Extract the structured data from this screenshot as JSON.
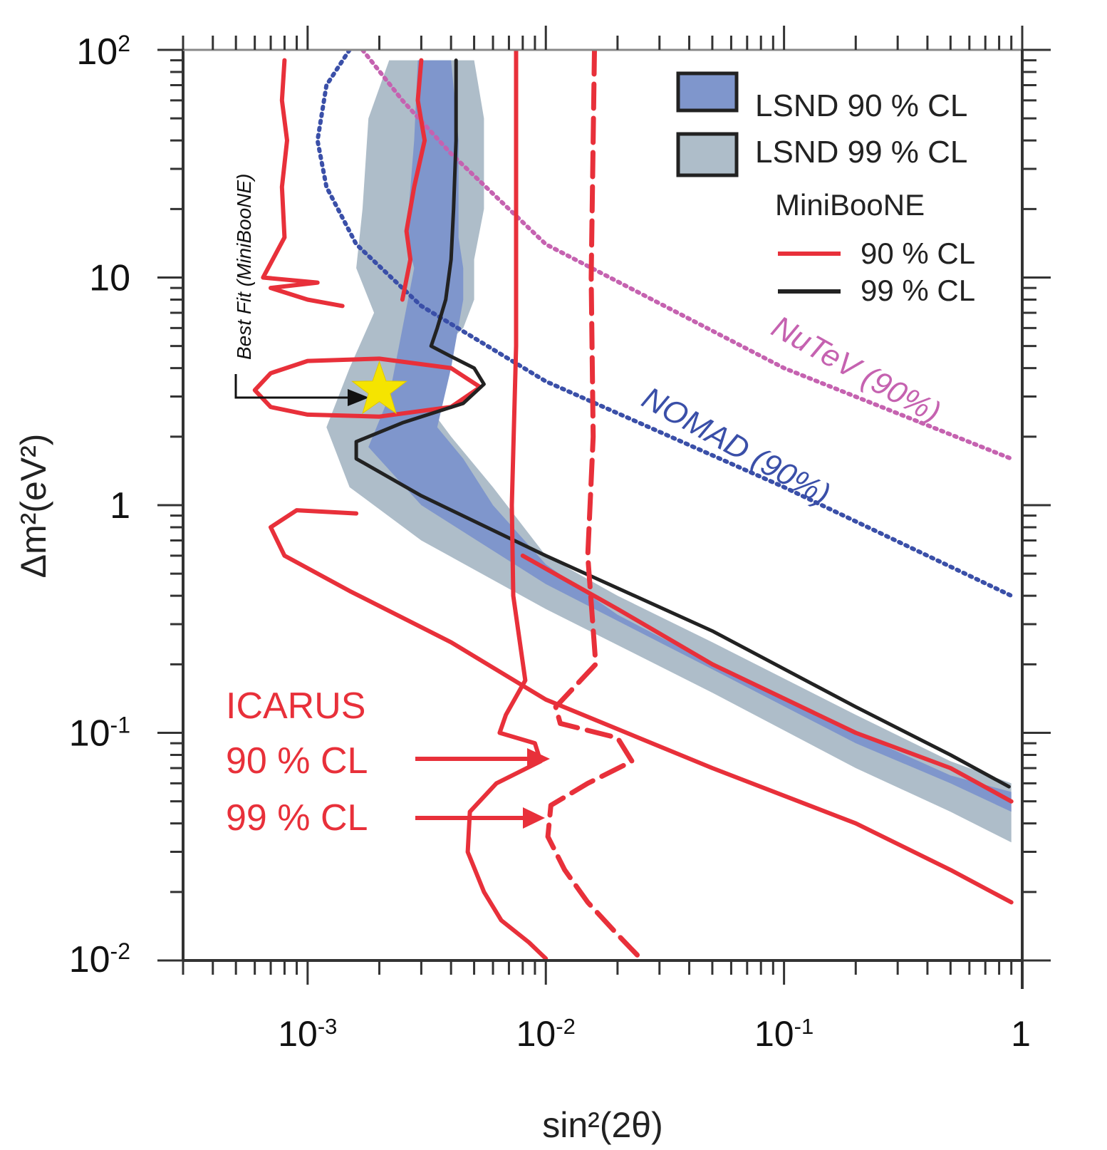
{
  "chart_data": {
    "type": "line",
    "xlabel": "sin²(2θ)",
    "ylabel": "Δm²(eV²)",
    "xscale": "log",
    "yscale": "log",
    "xlim": [
      0.0003,
      1
    ],
    "ylim": [
      0.01,
      100
    ],
    "x_tick_labels": [
      {
        "value": 0.001,
        "base": "10",
        "exp": "-3"
      },
      {
        "value": 0.01,
        "base": "10",
        "exp": "-2"
      },
      {
        "value": 0.1,
        "base": "10",
        "exp": "-1"
      },
      {
        "value": 1,
        "base": "1",
        "exp": ""
      }
    ],
    "y_tick_labels": [
      {
        "value": 100,
        "base": "10",
        "exp": "2"
      },
      {
        "value": 10,
        "base": "10",
        "exp": ""
      },
      {
        "value": 1,
        "base": "1",
        "exp": ""
      },
      {
        "value": 0.1,
        "base": "10",
        "exp": "-1"
      },
      {
        "value": 0.01,
        "base": "10",
        "exp": "-2"
      }
    ],
    "colors": {
      "lsnd90": "#7f96cc",
      "lsnd99": "#aebdc9",
      "red": "#e8303a",
      "black": "#222222",
      "nomad": "#3a4fa8",
      "nutev": "#c562b0",
      "star": "#f5e400"
    },
    "legend": {
      "position": "top-right",
      "lsnd90": "LSND 90 % CL",
      "lsnd99": "LSND 99 % CL",
      "miniboone": "MiniBooNE",
      "mb90": "90 % CL",
      "mb99": "99 % CL"
    },
    "annotations": {
      "nutev": "NuTeV (90%)",
      "nomad": "NOMAD (90%)",
      "bestfit": "Best Fit (MiniBooNE)",
      "icarus": "ICARUS",
      "icarus90": "90 % CL",
      "icarus99": "99 % CL"
    },
    "best_fit": {
      "x": 0.002,
      "y": 3.2
    },
    "lsnd99_region": {
      "left": [
        [
          0.0022,
          90
        ],
        [
          0.0018,
          50
        ],
        [
          0.0017,
          20
        ],
        [
          0.0016,
          11
        ],
        [
          0.0019,
          7
        ],
        [
          0.0015,
          4
        ],
        [
          0.0012,
          2.2
        ],
        [
          0.0015,
          1.2
        ],
        [
          0.003,
          0.7
        ],
        [
          0.01,
          0.35
        ],
        [
          0.05,
          0.15
        ],
        [
          0.2,
          0.07
        ],
        [
          0.5,
          0.045
        ],
        [
          0.9,
          0.033
        ]
      ],
      "right": [
        [
          0.9,
          0.06
        ],
        [
          0.5,
          0.075
        ],
        [
          0.2,
          0.12
        ],
        [
          0.05,
          0.25
        ],
        [
          0.02,
          0.4
        ],
        [
          0.01,
          0.6
        ],
        [
          0.006,
          1.2
        ],
        [
          0.004,
          2
        ],
        [
          0.003,
          3
        ],
        [
          0.003,
          4
        ],
        [
          0.0045,
          6
        ],
        [
          0.005,
          8
        ],
        [
          0.005,
          12
        ],
        [
          0.0055,
          20
        ],
        [
          0.0055,
          50
        ],
        [
          0.005,
          90
        ]
      ]
    },
    "lsnd90_region": {
      "left": [
        [
          0.0029,
          90
        ],
        [
          0.0028,
          40
        ],
        [
          0.0026,
          15
        ],
        [
          0.0028,
          11
        ],
        [
          0.0022,
          3
        ],
        [
          0.0018,
          1.8
        ],
        [
          0.003,
          1.0
        ],
        [
          0.01,
          0.45
        ],
        [
          0.05,
          0.19
        ],
        [
          0.2,
          0.09
        ],
        [
          0.5,
          0.06
        ],
        [
          0.9,
          0.045
        ]
      ],
      "right": [
        [
          0.9,
          0.055
        ],
        [
          0.5,
          0.065
        ],
        [
          0.2,
          0.1
        ],
        [
          0.05,
          0.2
        ],
        [
          0.02,
          0.33
        ],
        [
          0.01,
          0.55
        ],
        [
          0.006,
          1
        ],
        [
          0.0045,
          1.6
        ],
        [
          0.0035,
          2.2
        ],
        [
          0.004,
          4
        ],
        [
          0.0045,
          8
        ],
        [
          0.0045,
          11
        ],
        [
          0.0043,
          15
        ],
        [
          0.0043,
          40
        ],
        [
          0.004,
          90
        ]
      ]
    },
    "series": [
      {
        "name": "NuTeV (90%)",
        "style": "dotted",
        "color": "nutev",
        "x": [
          0.0017,
          0.0025,
          0.004,
          0.01,
          0.1,
          0.9
        ],
        "y": [
          100,
          60,
          35,
          14,
          4.0,
          1.6
        ]
      },
      {
        "name": "NOMAD (90%)",
        "style": "dotted",
        "color": "nomad",
        "x": [
          0.0015,
          0.0012,
          0.0011,
          0.0012,
          0.0016,
          0.003,
          0.01,
          0.1,
          0.9
        ],
        "y": [
          100,
          70,
          40,
          25,
          14,
          7.5,
          3.5,
          1.2,
          0.4
        ]
      },
      {
        "name": "MiniBooNE 90% CL (left)",
        "style": "solid",
        "color": "red",
        "x": [
          0.0008,
          0.00078,
          0.00082,
          0.00078,
          0.0008,
          0.00065,
          0.0011,
          0.0007,
          0.001,
          0.0014
        ],
        "y": [
          90,
          60,
          40,
          25,
          15,
          10,
          9.5,
          9,
          8,
          7.5
        ]
      },
      {
        "name": "MiniBooNE 90% CL (middle)",
        "style": "solid",
        "color": "red",
        "x": [
          0.003,
          0.0029,
          0.0031,
          0.0028,
          0.0026,
          0.0027,
          0.0025
        ],
        "y": [
          90,
          60,
          40,
          25,
          16,
          12,
          8
        ]
      },
      {
        "name": "MiniBooNE 90% CL (ellipse)",
        "style": "solid",
        "color": "red",
        "closed": true,
        "x": [
          0.0006,
          0.0007,
          0.001,
          0.002,
          0.004,
          0.0053,
          0.004,
          0.002,
          0.001,
          0.0007
        ],
        "y": [
          3.2,
          2.7,
          2.5,
          2.45,
          2.7,
          3.3,
          4.0,
          4.4,
          4.3,
          3.8
        ]
      },
      {
        "name": "MiniBooNE 99% CL",
        "style": "solid",
        "color": "black",
        "x": [
          0.0042,
          0.0042,
          0.0041,
          0.004,
          0.0038,
          0.0035,
          0.0033,
          0.004,
          0.005,
          0.0055,
          0.0045,
          0.0025,
          0.0016,
          0.0016,
          0.003,
          0.01,
          0.05,
          0.2,
          0.5,
          0.88
        ],
        "y": [
          90,
          40,
          20,
          12,
          8,
          6,
          5,
          4.5,
          4,
          3.4,
          2.8,
          2.3,
          1.9,
          1.6,
          1.1,
          0.6,
          0.28,
          0.13,
          0.08,
          0.058
        ]
      },
      {
        "name": "MiniBooNE 90% CL (lower)",
        "style": "solid",
        "color": "red",
        "x": [
          0.008,
          0.02,
          0.05,
          0.2,
          0.5,
          0.9
        ],
        "y": [
          0.6,
          0.35,
          0.2,
          0.1,
          0.07,
          0.05
        ]
      },
      {
        "name": "ICARUS 90% CL",
        "style": "solid",
        "color": "red",
        "x": [
          0.0075,
          0.0075,
          0.0072,
          0.0073,
          0.0082,
          0.0068,
          0.0064,
          0.009,
          0.0095,
          0.0062,
          0.0048,
          0.0047,
          0.0055,
          0.0065,
          0.0085,
          0.01
        ],
        "y": [
          100,
          5,
          1,
          0.4,
          0.17,
          0.12,
          0.1,
          0.09,
          0.075,
          0.06,
          0.045,
          0.03,
          0.02,
          0.015,
          0.012,
          0.0102
        ]
      },
      {
        "name": "ICARUS 99% CL",
        "style": "dashed",
        "color": "red",
        "x": [
          0.016,
          0.0155,
          0.0158,
          0.015,
          0.0162,
          0.011,
          0.0115,
          0.02,
          0.023,
          0.015,
          0.0105,
          0.0102,
          0.012,
          0.015,
          0.02,
          0.025
        ],
        "y": [
          100,
          10,
          2,
          0.6,
          0.2,
          0.13,
          0.11,
          0.095,
          0.075,
          0.06,
          0.048,
          0.035,
          0.025,
          0.018,
          0.013,
          0.0102
        ]
      },
      {
        "name": "ICARUS region (loop)",
        "style": "solid",
        "color": "red",
        "closed": false,
        "x": [
          0.0016,
          0.0009,
          0.0007,
          0.0008,
          0.0015,
          0.004,
          0.01,
          0.05,
          0.2,
          0.5,
          0.9
        ],
        "y": [
          0.92,
          0.95,
          0.8,
          0.6,
          0.42,
          0.25,
          0.14,
          0.07,
          0.04,
          0.025,
          0.018
        ]
      }
    ]
  }
}
